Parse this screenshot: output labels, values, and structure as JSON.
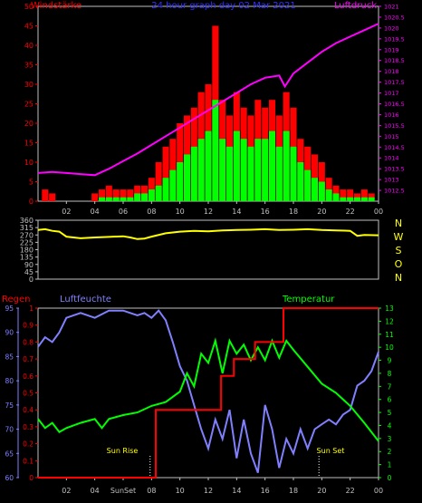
{
  "colors": {
    "background": "#000000",
    "frame": "#c0c0c0",
    "gust": "#ff0000",
    "wind": "#00ff00",
    "pressure": "#ff00ff",
    "direction": "#ffff00",
    "rain": "#ff0000",
    "humidity": "#8080ff",
    "temperature": "#00ff00",
    "header_left": "#ff0000",
    "header_center": "#3030ff",
    "header_right": "#ff00ff",
    "compass": "#ffff00",
    "rain_axis": "#ff0000",
    "humidity_axis": "#8080ff",
    "temp_axis": "#00ff00",
    "sun_label": "#ffff00"
  },
  "header": {
    "left": "Windstärke",
    "center": "24 hour graph day  02 Mar 2021",
    "right": "Luftdruck"
  },
  "compass": [
    "N",
    "W",
    "S",
    "O",
    "N"
  ],
  "lower_titles": {
    "rain": "Regen",
    "humidity": "Luftfeuchte",
    "temperature": "Temperatur"
  },
  "sun_labels": {
    "rise": "Sun Rise",
    "set": "Sun Set",
    "overlap": "Sun Rise"
  },
  "chart_data": [
    {
      "type": "bar",
      "panel": "wind-and-pressure",
      "x_label": "hour",
      "x_ticks": [
        "02",
        "04",
        "06",
        "08",
        "10",
        "12",
        "14",
        "16",
        "18",
        "20",
        "22",
        "00"
      ],
      "xlim": [
        0,
        24
      ],
      "left_axis": {
        "label": "Windstärke",
        "ylim": [
          0,
          50
        ],
        "ticks": [
          "0",
          "5",
          "10",
          "15",
          "20",
          "25",
          "30",
          "35",
          "40",
          "45",
          "50"
        ]
      },
      "right_axis": {
        "label": "Luftdruck",
        "ylim": [
          1012,
          1021
        ],
        "ticks": [
          "1012.5",
          "1013",
          "1013.5",
          "1014",
          "1014.5",
          "1015",
          "1015.5",
          "1016",
          "1016.5",
          "1017",
          "1017.5",
          "1018",
          "1018.5",
          "1019",
          "1019.5",
          "1020",
          "1020.5",
          "1021"
        ]
      },
      "series": [
        {
          "name": "Windstärke",
          "kind": "gust",
          "x": [
            0.5,
            1,
            1.5,
            2,
            2.5,
            3,
            3.5,
            4,
            4.5,
            5,
            5.5,
            6,
            6.5,
            7,
            7.5,
            8,
            8.5,
            9,
            9.5,
            10,
            10.5,
            11,
            11.5,
            12,
            12.5,
            13,
            13.5,
            14,
            14.5,
            15,
            15.5,
            16,
            16.5,
            17,
            17.5,
            18,
            18.5,
            19,
            19.5,
            20,
            20.5,
            21,
            21.5,
            22,
            22.5,
            23,
            23.5
          ],
          "values": [
            3,
            2,
            0,
            0,
            0,
            0,
            0,
            2,
            3,
            4,
            3,
            3,
            3,
            4,
            4,
            6,
            10,
            14,
            16,
            20,
            22,
            24,
            28,
            30,
            45,
            26,
            22,
            28,
            24,
            22,
            26,
            24,
            26,
            22,
            28,
            24,
            16,
            14,
            12,
            10,
            6,
            4,
            3,
            3,
            2,
            3,
            2
          ]
        },
        {
          "name": "Windstärke",
          "kind": "average",
          "x": [
            0.5,
            1,
            1.5,
            2,
            2.5,
            3,
            3.5,
            4,
            4.5,
            5,
            5.5,
            6,
            6.5,
            7,
            7.5,
            8,
            8.5,
            9,
            9.5,
            10,
            10.5,
            11,
            11.5,
            12,
            12.5,
            13,
            13.5,
            14,
            14.5,
            15,
            15.5,
            16,
            16.5,
            17,
            17.5,
            18,
            18.5,
            19,
            19.5,
            20,
            20.5,
            21,
            21.5,
            22,
            22.5,
            23,
            23.5
          ],
          "values": [
            0,
            0,
            0,
            0,
            0,
            0,
            0,
            0,
            1,
            1,
            1,
            1,
            1,
            2,
            2,
            3,
            4,
            6,
            8,
            10,
            12,
            14,
            16,
            18,
            26,
            16,
            14,
            18,
            16,
            14,
            16,
            16,
            18,
            14,
            18,
            14,
            10,
            8,
            6,
            5,
            3,
            2,
            1,
            1,
            1,
            1,
            1
          ]
        },
        {
          "name": "Luftdruck",
          "kind": "pressure",
          "x": [
            0,
            1,
            2,
            3,
            4,
            5,
            6,
            7,
            8,
            9,
            10,
            11,
            12,
            13,
            14,
            15,
            16,
            17,
            17.4,
            18,
            19,
            20,
            21,
            22,
            23,
            24
          ],
          "values": [
            1013.3,
            1013.35,
            1013.3,
            1013.25,
            1013.2,
            1013.5,
            1013.85,
            1014.2,
            1014.6,
            1015,
            1015.4,
            1015.8,
            1016.2,
            1016.6,
            1017,
            1017.4,
            1017.7,
            1017.8,
            1017.3,
            1017.9,
            1018.4,
            1018.9,
            1019.3,
            1019.6,
            1019.9,
            1020.2
          ]
        }
      ]
    },
    {
      "type": "line",
      "panel": "wind-direction",
      "xlim": [
        0,
        24
      ],
      "ylim": [
        0,
        360
      ],
      "y_ticks": [
        "0",
        "45",
        "90",
        "135",
        "180",
        "225",
        "270",
        "315",
        "360"
      ],
      "series": [
        {
          "name": "Windrichtung",
          "x": [
            0,
            0.5,
            1,
            1.5,
            2,
            3,
            4,
            5,
            6,
            6.5,
            7,
            7.5,
            8,
            9,
            10,
            11,
            12,
            13,
            14,
            15,
            16,
            17,
            18,
            19,
            20,
            21,
            22,
            22.5,
            23,
            24
          ],
          "values": [
            300,
            305,
            295,
            290,
            260,
            250,
            255,
            258,
            262,
            255,
            245,
            248,
            260,
            280,
            290,
            295,
            292,
            298,
            300,
            302,
            305,
            300,
            302,
            305,
            300,
            298,
            295,
            265,
            270,
            268
          ]
        }
      ]
    },
    {
      "type": "line",
      "panel": "rain-humidity-temperature",
      "x_ticks": [
        "02",
        "04",
        "SunSet",
        "08",
        "10",
        "12",
        "14",
        "16",
        "18",
        "20",
        "22",
        "00"
      ],
      "xlim": [
        0,
        24
      ],
      "rain_axis": {
        "label": "Regen",
        "ylim": [
          0,
          1
        ],
        "ticks": [
          "0",
          "0.1",
          "0.2",
          "0.3",
          "0.4",
          "0.5",
          "0.6",
          "0.7",
          "0.8",
          "0.9",
          "1"
        ]
      },
      "humidity_axis": {
        "label": "Luftfeuchte",
        "ylim": [
          60,
          95
        ],
        "ticks": [
          "60",
          "65",
          "70",
          "75",
          "80",
          "85",
          "90",
          "95"
        ]
      },
      "temp_axis": {
        "label": "Temperatur",
        "ylim": [
          0,
          13
        ],
        "ticks": [
          "0",
          "1",
          "2",
          "3",
          "4",
          "5",
          "6",
          "7",
          "8",
          "9",
          "10",
          "11",
          "12",
          "13"
        ]
      },
      "series": [
        {
          "name": "Regen",
          "x": [
            0,
            8.3,
            8.3,
            12.9,
            12.9,
            13.8,
            13.8,
            15.3,
            15.3,
            17.3,
            17.3,
            24
          ],
          "values": [
            0,
            0,
            0.4,
            0.4,
            0.6,
            0.6,
            0.7,
            0.7,
            0.8,
            0.8,
            1,
            1
          ]
        },
        {
          "name": "Luftfeuchte",
          "x": [
            0,
            0.5,
            1,
            1.5,
            2,
            3,
            4,
            5,
            6,
            6.5,
            7,
            7.5,
            8,
            8.5,
            9,
            9.5,
            10,
            10.5,
            11,
            11.5,
            12,
            12.5,
            13,
            13.5,
            14,
            14.5,
            15,
            15.5,
            16,
            16.5,
            17,
            17.5,
            18,
            18.5,
            19,
            19.5,
            20,
            20.5,
            21,
            21.5,
            22,
            22.5,
            23,
            23.5,
            24
          ],
          "values": [
            87,
            89,
            88,
            90,
            93,
            94,
            93,
            94.5,
            94.5,
            94,
            93.5,
            94,
            93,
            94.5,
            92.5,
            88,
            83,
            80,
            75,
            70,
            66,
            72,
            68,
            74,
            64,
            72,
            65,
            61,
            75,
            70,
            62,
            68,
            65,
            70,
            66,
            70,
            71,
            72,
            71,
            73,
            74,
            79,
            80,
            82,
            86
          ]
        },
        {
          "name": "Temperatur",
          "x": [
            0,
            0.5,
            1,
            1.5,
            2,
            3,
            4,
            4.5,
            5,
            6,
            7,
            8,
            9,
            10,
            10.5,
            11,
            11.5,
            12,
            12.5,
            13,
            13.5,
            14,
            14.5,
            15,
            15.5,
            16,
            16.5,
            17,
            17.5,
            18,
            19,
            20,
            21,
            22,
            23,
            24
          ],
          "values": [
            4.5,
            3.8,
            4.2,
            3.5,
            3.8,
            4.2,
            4.5,
            3.8,
            4.5,
            4.8,
            5.0,
            5.5,
            5.8,
            6.6,
            8.0,
            7.0,
            9.5,
            8.8,
            10.5,
            8.0,
            10.5,
            9.5,
            10.2,
            9.0,
            10.0,
            9.0,
            10.5,
            9.2,
            10.5,
            9.8,
            8.5,
            7.2,
            6.5,
            5.5,
            4.2,
            2.8
          ]
        }
      ]
    }
  ]
}
